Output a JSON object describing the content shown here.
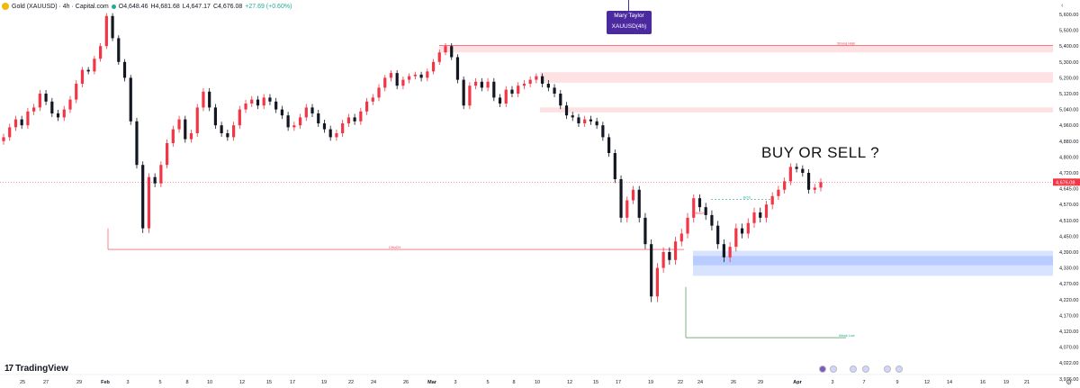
{
  "header": {
    "title": "Gold (XAUUSD) · 4h · Capital.com",
    "open": "O4,648.46",
    "high": "H4,681.68",
    "low": "L4,647.17",
    "close": "C4,676.08",
    "change": "+27.69 (+0.60%)"
  },
  "author": {
    "name": "Mary Taylor",
    "symbol": "XAUUSD(4h)"
  },
  "annotation_question": "BUY OR SELL ?",
  "brand": "TradingView",
  "colors": {
    "up": "#f23645",
    "down": "#131722",
    "demand_zone": "#2962ff",
    "supply_zone": "#f23645",
    "author_badge": "#4b2aa0"
  },
  "chart_data": {
    "type": "candlestick",
    "symbol": "XAUUSD",
    "timeframe": "4h",
    "y_ticks": [
      "5,600.00",
      "5,500.00",
      "5,400.00",
      "5,300.00",
      "5,200.00",
      "5,120.00",
      "5,040.00",
      "4,960.00",
      "4,880.00",
      "4,800.00",
      "4,720.00",
      "4,645.00",
      "4,570.00",
      "4,510.00",
      "4,450.00",
      "4,390.00",
      "4,330.00",
      "4,270.00",
      "4,220.00",
      "4,170.00",
      "4,120.00",
      "4,070.00",
      "4,022.00",
      "3,976.00"
    ],
    "y_tick_values": [
      5600,
      5500,
      5400,
      5300,
      5200,
      5120,
      5040,
      4960,
      4880,
      4800,
      4720,
      4645,
      4570,
      4510,
      4450,
      4390,
      4330,
      4270,
      4220,
      4170,
      4120,
      4070,
      4022,
      3976
    ],
    "x_ticks": [
      "25",
      "27",
      "29",
      "Feb",
      "3",
      "5",
      "8",
      "10",
      "12",
      "15",
      "17",
      "19",
      "22",
      "24",
      "26",
      "Mar",
      "3",
      "5",
      "8",
      "10",
      "12",
      "15",
      "17",
      "19",
      "22",
      "24",
      "26",
      "29",
      "Apr",
      "3",
      "7",
      "9",
      "12",
      "14",
      "16",
      "19",
      "21"
    ],
    "last_price": "4,676.08",
    "last_price_value": 4676.08,
    "price_path": [
      [
        4880,
        4900
      ],
      [
        4900,
        4950
      ],
      [
        4950,
        4990
      ],
      [
        4990,
        4960
      ],
      [
        4960,
        5030
      ],
      [
        5030,
        5050
      ],
      [
        5050,
        5120
      ],
      [
        5120,
        5080
      ],
      [
        5080,
        5020
      ],
      [
        5020,
        5000
      ],
      [
        5000,
        5040
      ],
      [
        5040,
        5090
      ],
      [
        5090,
        5170
      ],
      [
        5170,
        5250
      ],
      [
        5250,
        5240
      ],
      [
        5240,
        5320
      ],
      [
        5320,
        5400
      ],
      [
        5400,
        5590
      ],
      [
        5590,
        5450
      ],
      [
        5450,
        5300
      ],
      [
        5300,
        5200
      ],
      [
        5200,
        4980
      ],
      [
        4980,
        4760
      ],
      [
        4760,
        4480
      ],
      [
        4480,
        4700
      ],
      [
        4700,
        4670
      ],
      [
        4670,
        4760
      ],
      [
        4760,
        4870
      ],
      [
        4870,
        4940
      ],
      [
        4940,
        4990
      ],
      [
        4990,
        4890
      ],
      [
        4890,
        4920
      ],
      [
        4920,
        5050
      ],
      [
        5050,
        5130
      ],
      [
        5130,
        5050
      ],
      [
        5050,
        4960
      ],
      [
        4960,
        4920
      ],
      [
        4920,
        4900
      ],
      [
        4900,
        4960
      ],
      [
        4960,
        5040
      ],
      [
        5040,
        5070
      ],
      [
        5070,
        5090
      ],
      [
        5090,
        5060
      ],
      [
        5060,
        5100
      ],
      [
        5100,
        5080
      ],
      [
        5080,
        5040
      ],
      [
        5040,
        5010
      ],
      [
        5010,
        4950
      ],
      [
        4950,
        4960
      ],
      [
        4960,
        5000
      ],
      [
        5000,
        5050
      ],
      [
        5050,
        5020
      ],
      [
        5020,
        4970
      ],
      [
        4970,
        4940
      ],
      [
        4940,
        4900
      ],
      [
        4900,
        4920
      ],
      [
        4920,
        4970
      ],
      [
        4970,
        5000
      ],
      [
        5000,
        4980
      ],
      [
        4980,
        5030
      ],
      [
        5030,
        5080
      ],
      [
        5080,
        5100
      ],
      [
        5100,
        5150
      ],
      [
        5150,
        5200
      ],
      [
        5200,
        5230
      ],
      [
        5230,
        5160
      ],
      [
        5160,
        5190
      ],
      [
        5190,
        5210
      ],
      [
        5210,
        5220
      ],
      [
        5220,
        5200
      ],
      [
        5200,
        5240
      ],
      [
        5240,
        5300
      ],
      [
        5300,
        5360
      ],
      [
        5360,
        5400
      ],
      [
        5400,
        5330
      ],
      [
        5330,
        5190
      ],
      [
        5190,
        5060
      ],
      [
        5060,
        5160
      ],
      [
        5160,
        5180
      ],
      [
        5180,
        5150
      ],
      [
        5150,
        5180
      ],
      [
        5180,
        5100
      ],
      [
        5100,
        5070
      ],
      [
        5070,
        5140
      ],
      [
        5140,
        5120
      ],
      [
        5120,
        5160
      ],
      [
        5160,
        5170
      ],
      [
        5170,
        5190
      ],
      [
        5190,
        5210
      ],
      [
        5210,
        5170
      ],
      [
        5170,
        5150
      ],
      [
        5150,
        5120
      ],
      [
        5120,
        5060
      ],
      [
        5060,
        5010
      ],
      [
        5010,
        5000
      ],
      [
        5000,
        4970
      ],
      [
        4970,
        4990
      ],
      [
        4990,
        4980
      ],
      [
        4980,
        4960
      ],
      [
        4960,
        4900
      ],
      [
        4900,
        4820
      ],
      [
        4820,
        4690
      ],
      [
        4690,
        4520
      ],
      [
        4520,
        4590
      ],
      [
        4590,
        4640
      ],
      [
        4640,
        4520
      ],
      [
        4520,
        4420
      ],
      [
        4420,
        4230
      ],
      [
        4230,
        4330
      ],
      [
        4330,
        4390
      ],
      [
        4390,
        4360
      ],
      [
        4360,
        4430
      ],
      [
        4430,
        4460
      ],
      [
        4460,
        4520
      ],
      [
        4520,
        4600
      ],
      [
        4600,
        4560
      ],
      [
        4560,
        4530
      ],
      [
        4530,
        4490
      ],
      [
        4490,
        4420
      ],
      [
        4420,
        4370
      ],
      [
        4370,
        4410
      ],
      [
        4410,
        4480
      ],
      [
        4480,
        4460
      ],
      [
        4460,
        4500
      ],
      [
        4500,
        4540
      ],
      [
        4540,
        4520
      ],
      [
        4520,
        4570
      ],
      [
        4570,
        4610
      ],
      [
        4610,
        4640
      ],
      [
        4640,
        4680
      ],
      [
        4680,
        4750
      ],
      [
        4750,
        4740
      ],
      [
        4740,
        4720
      ],
      [
        4720,
        4640
      ],
      [
        4640,
        4650
      ],
      [
        4650,
        4676
      ]
    ],
    "zones": [
      {
        "type": "supply",
        "top": 5405,
        "bottom": 5360
      },
      {
        "type": "supply",
        "top": 5235,
        "bottom": 5175
      },
      {
        "type": "supply",
        "top": 5050,
        "bottom": 5025
      },
      {
        "type": "demand",
        "top": 4395,
        "bottom": 4300
      },
      {
        "type": "demand",
        "top": 4375,
        "bottom": 4340
      }
    ],
    "level_labels": [
      {
        "text": "Strong High",
        "value": 5405
      },
      {
        "text": "Weak Low",
        "value": 4100
      },
      {
        "text": "CHoCH",
        "value": 4400
      },
      {
        "text": "BOS",
        "value": 4595
      },
      {
        "text": "CHoCH",
        "value": 4530
      }
    ]
  }
}
